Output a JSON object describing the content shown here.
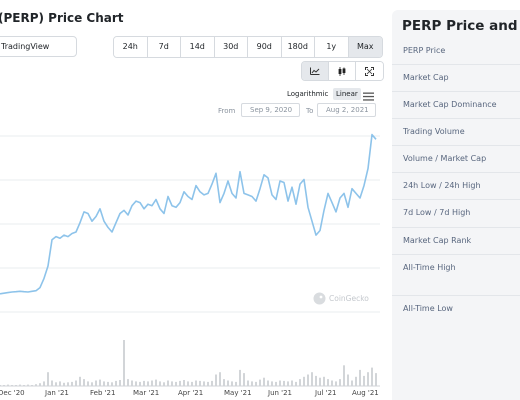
{
  "header": {
    "title": "(PERP) Price Chart",
    "tradingview_label": "TradingView"
  },
  "range_buttons": [
    "24h",
    "7d",
    "14d",
    "30d",
    "90d",
    "180d",
    "1y",
    "Max"
  ],
  "range_active": "Max",
  "chart_type_icons": [
    "line-chart-icon",
    "candlestick-icon",
    "fullscreen-icon"
  ],
  "scale": {
    "logarithmic_label": "Logarithmic",
    "linear_label": "Linear",
    "active": "Linear"
  },
  "date_range": {
    "from_label": "From",
    "from_value": "Sep 9, 2020",
    "to_label": "To",
    "to_value": "Aug 2, 2021"
  },
  "watermark": "CoinGecko",
  "chart_data": {
    "type": "line",
    "x_tick_labels": [
      "Dec '20",
      "Jan '21",
      "Feb '21",
      "Mar '21",
      "Apr '21",
      "May '21",
      "Jun '21",
      "Jul '21",
      "Aug '21"
    ],
    "grid": true,
    "line_color": "#8dc3ea",
    "price_series": [
      0.7,
      0.72,
      0.74,
      0.76,
      0.77,
      0.78,
      0.77,
      0.76,
      0.78,
      0.8,
      0.9,
      1.2,
      1.6,
      2.45,
      2.55,
      2.5,
      2.6,
      2.55,
      2.65,
      2.7,
      3.0,
      3.35,
      3.3,
      3.05,
      3.2,
      3.45,
      3.05,
      2.85,
      2.7,
      3.0,
      3.3,
      3.4,
      3.25,
      3.55,
      3.7,
      3.65,
      3.45,
      3.6,
      3.55,
      3.75,
      3.45,
      3.3,
      3.85,
      3.55,
      3.5,
      3.65,
      4.0,
      3.85,
      3.75,
      4.2,
      4.0,
      3.9,
      3.95,
      4.25,
      4.6,
      3.65,
      3.95,
      4.35,
      3.95,
      3.8,
      4.65,
      3.95,
      3.9,
      3.85,
      3.7,
      4.1,
      4.55,
      4.45,
      3.9,
      3.75,
      4.35,
      4.3,
      3.7,
      4.15,
      3.6,
      4.25,
      4.4,
      3.5,
      3.05,
      2.6,
      2.75,
      3.4,
      3.95,
      3.65,
      3.35,
      3.8,
      3.95,
      3.5,
      4.1,
      3.95,
      3.8,
      4.2,
      4.75,
      5.85,
      5.7
    ],
    "volume_series": [
      0.02,
      0.02,
      0.03,
      0.02,
      0.02,
      0.03,
      0.02,
      0.03,
      0.02,
      0.04,
      0.06,
      0.1,
      0.3,
      0.12,
      0.08,
      0.1,
      0.07,
      0.08,
      0.09,
      0.12,
      0.2,
      0.15,
      0.1,
      0.08,
      0.12,
      0.14,
      0.1,
      0.09,
      0.08,
      0.11,
      0.13,
      1.0,
      0.15,
      0.12,
      0.1,
      0.09,
      0.11,
      0.1,
      0.12,
      0.14,
      0.1,
      0.08,
      0.12,
      0.1,
      0.09,
      0.11,
      0.13,
      0.1,
      0.09,
      0.12,
      0.11,
      0.1,
      0.09,
      0.11,
      0.25,
      0.3,
      0.15,
      0.12,
      0.1,
      0.09,
      0.35,
      0.28,
      0.12,
      0.1,
      0.09,
      0.14,
      0.18,
      0.12,
      0.1,
      0.09,
      0.12,
      0.11,
      0.1,
      0.12,
      0.09,
      0.15,
      0.2,
      0.25,
      0.3,
      0.22,
      0.18,
      0.2,
      0.15,
      0.12,
      0.1,
      0.15,
      0.45,
      0.25,
      0.12,
      0.2,
      0.35,
      0.22,
      0.3,
      0.4,
      0.28
    ]
  },
  "stats_panel": {
    "title": "PERP Price and M",
    "rows": [
      "PERP Price",
      "Market Cap",
      "Market Cap Dominance",
      "Trading Volume",
      "Volume / Market Cap",
      "24h Low / 24h High",
      "7d Low / 7d High",
      "Market Cap Rank",
      "All-Time High",
      "All-Time Low"
    ]
  }
}
